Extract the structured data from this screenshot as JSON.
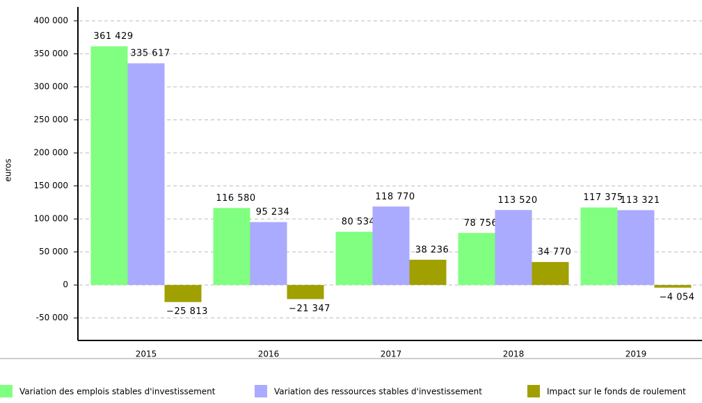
{
  "chart_data": {
    "type": "bar",
    "y_label": "euros",
    "categories": [
      "2015",
      "2016",
      "2017",
      "2018",
      "2019"
    ],
    "series": [
      {
        "name": "Variation des emplois stables d'investissement",
        "color": "#80ff80",
        "values": [
          361429,
          116580,
          80534,
          78756,
          117375
        ],
        "value_labels": [
          "361 429",
          "116 580",
          "80 534",
          "78 756",
          "117 375"
        ]
      },
      {
        "name": "Variation des ressources stables d'investissement",
        "color": "#aaaaff",
        "values": [
          335617,
          95234,
          118770,
          113520,
          113321
        ],
        "value_labels": [
          "335 617",
          "95 234",
          "118 770",
          "113 520",
          "113 321"
        ]
      },
      {
        "name": "Impact sur le fonds de roulement",
        "color": "#a0a000",
        "values": [
          -25813,
          -21347,
          38236,
          34770,
          -4054
        ],
        "value_labels": [
          "−25 813",
          "−21 347",
          "38 236",
          "34 770",
          "−4 054"
        ]
      }
    ],
    "ylim": [
      -84000,
      421000
    ],
    "yticks": [
      {
        "value": -50000,
        "label": "-50 000"
      },
      0,
      {
        "value": 50000,
        "label": "50 000"
      },
      {
        "value": 100000,
        "label": "100 000"
      },
      {
        "value": 150000,
        "label": "150 000"
      },
      {
        "value": 200000,
        "label": "200 000"
      },
      {
        "value": 250000,
        "label": "250 000"
      },
      {
        "value": 300000,
        "label": "300 000"
      },
      {
        "value": 350000,
        "label": "350 000"
      },
      {
        "value": 400000,
        "label": "400 000"
      }
    ],
    "grid": true
  }
}
